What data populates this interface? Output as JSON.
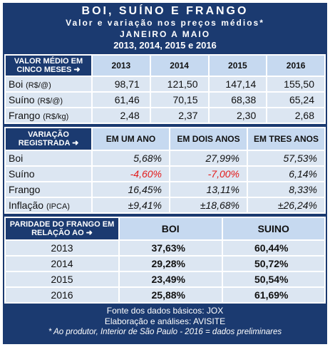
{
  "header": {
    "title": "BOI, SUÍNO E FRANGO",
    "subtitle": "Valor e variação nos preços médios*",
    "period": "JANEIRO A MAIO",
    "years": "2013, 2014, 2015 e 2016"
  },
  "prices": {
    "label": "VALOR MÉDIO EM CINCO MESES ➜",
    "columns": [
      "2013",
      "2014",
      "2015",
      "2016"
    ],
    "rows": [
      {
        "name": "Boi",
        "unit": "(R$/@)",
        "values": [
          "98,71",
          "121,50",
          "147,14",
          "155,50"
        ]
      },
      {
        "name": "Suíno",
        "unit": "(R$/@)",
        "values": [
          "61,46",
          "70,15",
          "68,38",
          "65,24"
        ]
      },
      {
        "name": "Frango",
        "unit": "(R$/kg)",
        "values": [
          "2,48",
          "2,37",
          "2,30",
          "2,68"
        ]
      }
    ]
  },
  "variation": {
    "label": "VARIAÇÃO REGISTRADA ➜",
    "columns": [
      "EM UM ANO",
      "EM DOIS ANOS",
      "EM TRES ANOS"
    ],
    "rows": [
      {
        "name": "Boi",
        "values": [
          "5,68%",
          "27,99%",
          "57,53%"
        ]
      },
      {
        "name": "Suíno",
        "values": [
          "-4,60%",
          "-7,00%",
          "6,14%"
        ]
      },
      {
        "name": "Frango",
        "values": [
          "16,45%",
          "13,11%",
          "8,33%"
        ]
      },
      {
        "name": "Inflação",
        "unit": "(IPCA)",
        "values": [
          "±9,41%",
          "±18,68%",
          "±26,24%"
        ]
      }
    ]
  },
  "parity": {
    "label": "PARIDADE DO FRANGO EM RELAÇÃO AO ➜",
    "columns": [
      "BOI",
      "SUINO"
    ],
    "rows": [
      {
        "name": "2013",
        "values": [
          "37,63%",
          "60,44%"
        ]
      },
      {
        "name": "2014",
        "values": [
          "29,28%",
          "50,72%"
        ]
      },
      {
        "name": "2015",
        "values": [
          "23,49%",
          "50,54%"
        ]
      },
      {
        "name": "2016",
        "values": [
          "25,88%",
          "61,69%"
        ]
      }
    ]
  },
  "footer": {
    "source": "Fonte dos dados básicos: JOX",
    "analysis": "Elaboração e análises: AVISITE",
    "note": "* Ao produtor, Interior de São Paulo -  2016 = dados preliminares"
  }
}
